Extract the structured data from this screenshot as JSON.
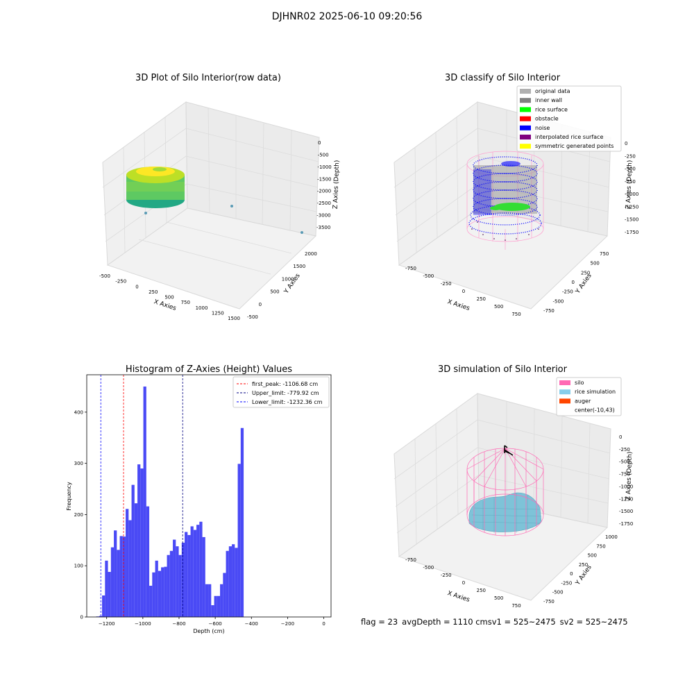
{
  "figure": {
    "suptitle": "DJHNR02 2025-06-10 09:20:56",
    "footer": {
      "flag": "flag = 23",
      "avg": "avgDepth = 1110 cmsv1 = 525~2475",
      "sv2": "sv2 = 525~2475"
    }
  },
  "panels": {
    "raw": {
      "title": "3D Plot of Silo Interior(row data)",
      "xlabel": "X Axies",
      "ylabel": "Y Axies",
      "zlabel": "Z Axies (Depth)",
      "xticks": [
        "-500",
        "-250",
        "0",
        "250",
        "500",
        "750",
        "1000",
        "1250",
        "1500"
      ],
      "yticks": [
        "-500",
        "0",
        "500",
        "1000",
        "1500",
        "2000"
      ],
      "zticks": [
        "0",
        "-500",
        "-1000",
        "-1500",
        "-2000",
        "-2500",
        "-3000",
        "-3500"
      ]
    },
    "classify": {
      "title": "3D classify of Silo Interior",
      "xlabel": "X Axies",
      "ylabel": "Y Axies",
      "zlabel": "Z Axies (Depth)",
      "xticks": [
        "-750",
        "-500",
        "-250",
        "0",
        "250",
        "500",
        "750"
      ],
      "yticks": [
        "-750",
        "-500",
        "-250",
        "0",
        "250",
        "500",
        "750"
      ],
      "zticks": [
        "0",
        "-250",
        "-500",
        "-750",
        "-1000",
        "-1250",
        "-1500",
        "-1750"
      ],
      "legend": [
        {
          "label": "original data",
          "color": "#b0b0b0"
        },
        {
          "label": "inner wall",
          "color": "#808080"
        },
        {
          "label": "rice surface",
          "color": "#00ff00"
        },
        {
          "label": "obstacle",
          "color": "#ff0000"
        },
        {
          "label": "noise",
          "color": "#0000ff"
        },
        {
          "label": "interpolated rice surface",
          "color": "#800080"
        },
        {
          "label": "symmetric generated points",
          "color": "#ffff00"
        }
      ]
    },
    "simulation": {
      "title": "3D simulation of Silo Interior",
      "xlabel": "X Axies",
      "ylabel": "Y Axies",
      "zlabel": "Z Axies (Depth)",
      "xticks": [
        "-750",
        "-500",
        "-250",
        "0",
        "250",
        "500",
        "750"
      ],
      "yticks": [
        "-750",
        "-500",
        "-250",
        "0",
        "250",
        "500",
        "750",
        "1000"
      ],
      "zticks": [
        "0",
        "-250",
        "-500",
        "-750",
        "-1000",
        "-1250",
        "-1500",
        "-1750"
      ],
      "legend": [
        {
          "label": "silo",
          "color": "#ff69b4"
        },
        {
          "label": "rice simulation",
          "color": "#87ceeb"
        },
        {
          "label": "auger",
          "color": "#ff4500"
        },
        {
          "label": "center(-10,43)",
          "color": "#ffffff"
        }
      ]
    }
  },
  "chart_data": {
    "type": "bar",
    "title": "Histogram of Z-Axies (Height) Values",
    "xlabel": "Depth (cm)",
    "ylabel": "Frequency",
    "xlim": [
      -1310,
      40
    ],
    "ylim": [
      0,
      473
    ],
    "xticks": [
      -1200,
      -1000,
      -800,
      -600,
      -400,
      -200,
      0
    ],
    "xtick_labels": [
      "−1200",
      "−1000",
      "−800",
      "−600",
      "−400",
      "−200",
      "0"
    ],
    "yticks": [
      0,
      100,
      200,
      300,
      400
    ],
    "bin_start": -1258,
    "bin_width": 16.3,
    "values": [
      1,
      2,
      42,
      110,
      88,
      136,
      169,
      131,
      158,
      157,
      211,
      189,
      258,
      222,
      298,
      290,
      450,
      216,
      61,
      87,
      110,
      90,
      97,
      98,
      121,
      129,
      151,
      138,
      121,
      145,
      166,
      160,
      177,
      170,
      180,
      186,
      156,
      64,
      64,
      23,
      41,
      41,
      64,
      86,
      129,
      138,
      142,
      135,
      299,
      369
    ],
    "bar_color": "#4a4af5",
    "lines": [
      {
        "label": "first_peak: -1106.68 cm",
        "x": -1106.68,
        "color": "#ff0000"
      },
      {
        "label": "Upper_limit: -779.92 cm",
        "x": -779.92,
        "color": "#000080"
      },
      {
        "label": "Lower_limit: -1232.36 cm",
        "x": -1232.36,
        "color": "#0000ff"
      }
    ],
    "legend_position": "upper right",
    "grid": false
  }
}
